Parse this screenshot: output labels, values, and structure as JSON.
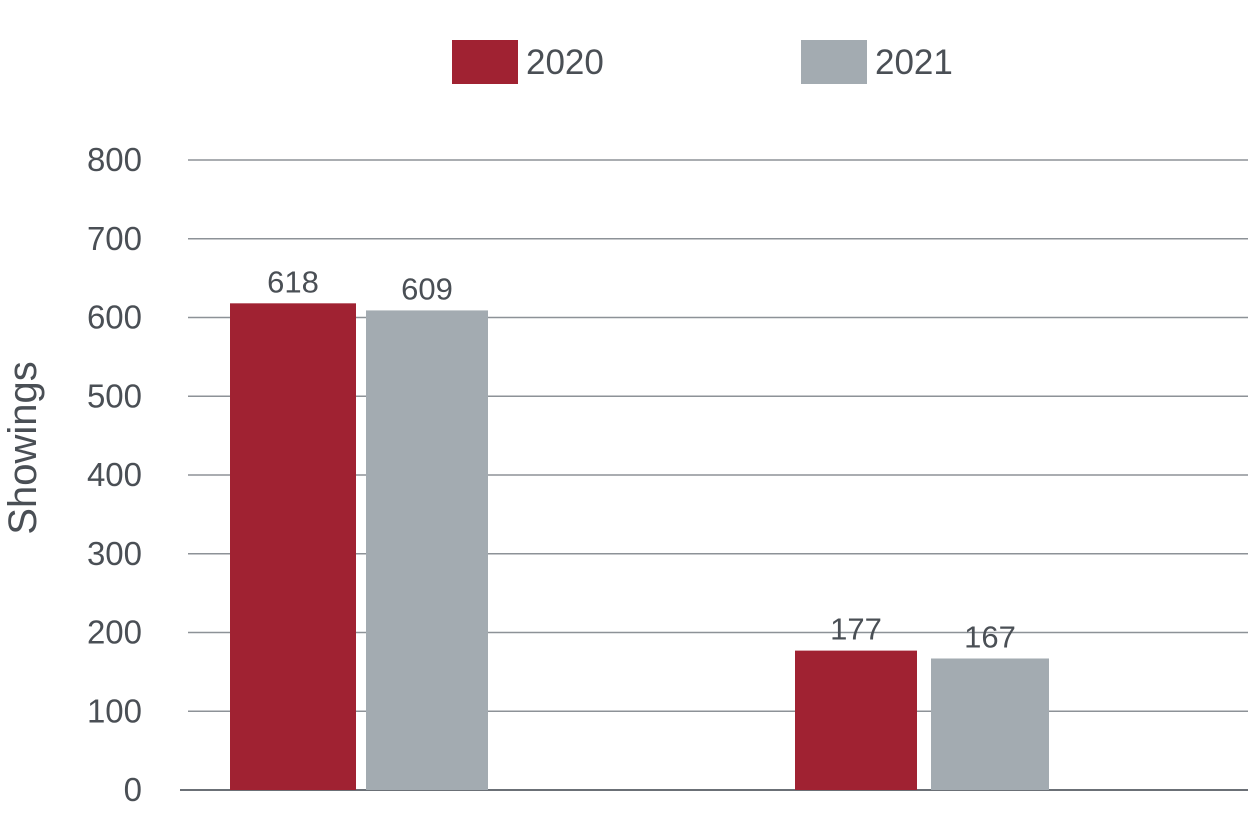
{
  "chart_data": {
    "type": "bar",
    "categories": [
      "",
      ""
    ],
    "series": [
      {
        "name": "2020",
        "values": [
          618,
          177
        ],
        "color": "#a02232"
      },
      {
        "name": "2021",
        "values": [
          609,
          167
        ],
        "color": "#a3abb1"
      }
    ],
    "title": "",
    "xlabel": "",
    "ylabel": "Showings",
    "ylim": [
      0,
      800
    ],
    "yticks": [
      "0",
      "100",
      "200",
      "300",
      "400",
      "500",
      "600",
      "700",
      "800"
    ],
    "grid": true,
    "legend_position": "top"
  }
}
